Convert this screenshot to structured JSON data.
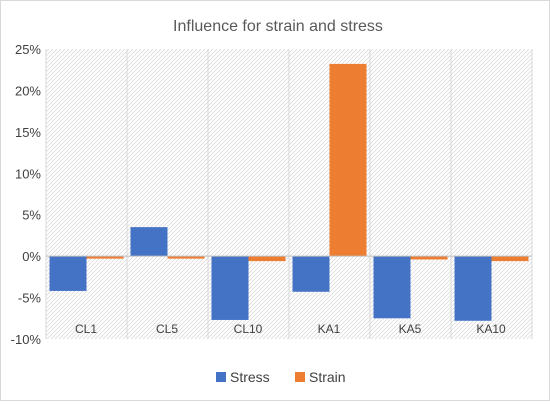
{
  "chart_data": {
    "type": "bar",
    "title": "Influence for strain and stress",
    "categories": [
      "CL1",
      "CL5",
      "CL10",
      "KA1",
      "KA5",
      "KA10"
    ],
    "series": [
      {
        "name": "Stress",
        "color": "#4472c4",
        "values": [
          -4.2,
          3.5,
          -7.7,
          -4.3,
          -7.5,
          -7.8
        ]
      },
      {
        "name": "Strain",
        "color": "#ed7d31",
        "values": [
          -0.3,
          -0.3,
          -0.6,
          23.2,
          -0.4,
          -0.6
        ]
      }
    ],
    "ylim": [
      -10,
      25
    ],
    "yticks": [
      25,
      20,
      15,
      10,
      5,
      0,
      -5,
      -10
    ],
    "ytick_format": "percent",
    "xlabel": "",
    "ylabel": "",
    "grid": "vertical category separators",
    "legend": "bottom-center"
  }
}
